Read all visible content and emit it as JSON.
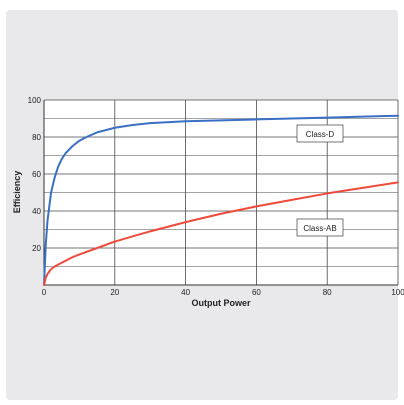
{
  "chart_data": {
    "type": "line",
    "title": "",
    "xlabel": "Output Power",
    "ylabel": "Efficiency",
    "xlim": [
      0,
      100
    ],
    "ylim": [
      0,
      100
    ],
    "x_ticks": [
      "0",
      "20",
      "40",
      "60",
      "80",
      "100"
    ],
    "y_ticks": [
      "20",
      "40",
      "60",
      "80",
      "100"
    ],
    "grid": true,
    "series": [
      {
        "name": "Class-D",
        "color": "#3a6fc4",
        "x": [
          0,
          0.5,
          1,
          2,
          3,
          4,
          5,
          6,
          8,
          10,
          12,
          15,
          20,
          25,
          30,
          40,
          50,
          60,
          70,
          80,
          90,
          100
        ],
        "y": [
          0,
          22,
          35,
          50,
          58,
          64,
          68,
          71,
          75,
          78,
          80,
          82.5,
          85,
          86.5,
          87.5,
          88.5,
          89,
          89.5,
          90,
          90.5,
          91,
          91.5
        ]
      },
      {
        "name": "Class-AB",
        "color": "#f04a3a",
        "x": [
          0,
          0.5,
          1,
          2,
          3,
          5,
          8,
          10,
          15,
          20,
          30,
          40,
          50,
          60,
          70,
          80,
          90,
          100
        ],
        "y": [
          0,
          4,
          6,
          8.5,
          10,
          12,
          15,
          16.5,
          20,
          23.5,
          29,
          34,
          38.5,
          42.5,
          46,
          49.5,
          52.5,
          55.5
        ]
      }
    ]
  }
}
